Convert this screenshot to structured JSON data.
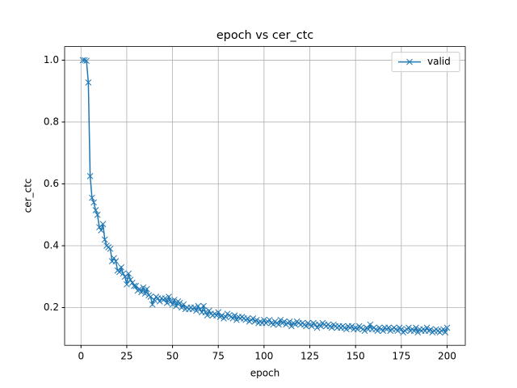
{
  "chart_data": {
    "type": "line",
    "title": "epoch vs cer_ctc",
    "x_label": "epoch",
    "y_label": "cer_ctc",
    "x": [
      1,
      2,
      3,
      4,
      5,
      6,
      7,
      8,
      9,
      10,
      11,
      12,
      13,
      14,
      15,
      16,
      17,
      18,
      19,
      20,
      21,
      22,
      23,
      24,
      25,
      26,
      27,
      28,
      29,
      30,
      31,
      32,
      33,
      34,
      35,
      36,
      37,
      38,
      39,
      40,
      41,
      42,
      43,
      44,
      45,
      46,
      47,
      48,
      49,
      50,
      51,
      52,
      53,
      54,
      55,
      56,
      57,
      58,
      59,
      60,
      61,
      62,
      63,
      64,
      65,
      66,
      67,
      68,
      69,
      70,
      71,
      72,
      73,
      74,
      75,
      76,
      77,
      78,
      79,
      80,
      81,
      82,
      83,
      84,
      85,
      86,
      87,
      88,
      89,
      90,
      91,
      92,
      93,
      94,
      95,
      96,
      97,
      98,
      99,
      100,
      101,
      102,
      103,
      104,
      105,
      106,
      107,
      108,
      109,
      110,
      111,
      112,
      113,
      114,
      115,
      116,
      117,
      118,
      119,
      120,
      121,
      122,
      123,
      124,
      125,
      126,
      127,
      128,
      129,
      130,
      131,
      132,
      133,
      134,
      135,
      136,
      137,
      138,
      139,
      140,
      141,
      142,
      143,
      144,
      145,
      146,
      147,
      148,
      149,
      150,
      151,
      152,
      153,
      154,
      155,
      156,
      157,
      158,
      159,
      160,
      161,
      162,
      163,
      164,
      165,
      166,
      167,
      168,
      169,
      170,
      171,
      172,
      173,
      174,
      175,
      176,
      177,
      178,
      179,
      180,
      181,
      182,
      183,
      184,
      185,
      186,
      187,
      188,
      189,
      190,
      191,
      192,
      193,
      194,
      195,
      196,
      197,
      198,
      199,
      200
    ],
    "series": [
      {
        "name": "valid",
        "color": "#1f77b4",
        "values": [
          1.0,
          1.0,
          0.998,
          0.928,
          0.625,
          0.555,
          0.54,
          0.515,
          0.5,
          0.46,
          0.45,
          0.47,
          0.42,
          0.4,
          0.395,
          0.39,
          0.35,
          0.36,
          0.35,
          0.32,
          0.315,
          0.33,
          0.31,
          0.3,
          0.275,
          0.31,
          0.29,
          0.28,
          0.27,
          0.27,
          0.255,
          0.26,
          0.25,
          0.265,
          0.245,
          0.26,
          0.24,
          0.235,
          0.21,
          0.225,
          0.235,
          0.23,
          0.22,
          0.23,
          0.225,
          0.23,
          0.215,
          0.235,
          0.22,
          0.21,
          0.225,
          0.205,
          0.22,
          0.215,
          0.2,
          0.21,
          0.195,
          0.2,
          0.195,
          0.2,
          0.195,
          0.2,
          0.19,
          0.205,
          0.195,
          0.185,
          0.205,
          0.185,
          0.175,
          0.19,
          0.18,
          0.175,
          0.18,
          0.175,
          0.185,
          0.17,
          0.175,
          0.165,
          0.17,
          0.18,
          0.175,
          0.17,
          0.165,
          0.175,
          0.16,
          0.17,
          0.165,
          0.17,
          0.165,
          0.16,
          0.165,
          0.155,
          0.16,
          0.165,
          0.155,
          0.16,
          0.15,
          0.155,
          0.15,
          0.16,
          0.15,
          0.155,
          0.16,
          0.15,
          0.145,
          0.155,
          0.15,
          0.145,
          0.16,
          0.15,
          0.155,
          0.145,
          0.15,
          0.155,
          0.14,
          0.15,
          0.145,
          0.155,
          0.15,
          0.145,
          0.15,
          0.145,
          0.14,
          0.15,
          0.145,
          0.14,
          0.15,
          0.145,
          0.135,
          0.145,
          0.14,
          0.15,
          0.145,
          0.14,
          0.145,
          0.14,
          0.135,
          0.145,
          0.14,
          0.135,
          0.14,
          0.135,
          0.14,
          0.135,
          0.13,
          0.14,
          0.135,
          0.14,
          0.13,
          0.135,
          0.13,
          0.14,
          0.135,
          0.13,
          0.125,
          0.135,
          0.13,
          0.145,
          0.13,
          0.135,
          0.13,
          0.125,
          0.135,
          0.13,
          0.125,
          0.135,
          0.13,
          0.135,
          0.125,
          0.13,
          0.135,
          0.13,
          0.125,
          0.135,
          0.13,
          0.12,
          0.125,
          0.13,
          0.135,
          0.125,
          0.13,
          0.125,
          0.135,
          0.12,
          0.13,
          0.125,
          0.13,
          0.125,
          0.135,
          0.125,
          0.13,
          0.12,
          0.125,
          0.13,
          0.125,
          0.12,
          0.125,
          0.13,
          0.12,
          0.135
        ]
      }
    ],
    "xlim": [
      -8.95,
      209.95
    ],
    "xticks": [
      0,
      25,
      50,
      75,
      100,
      125,
      150,
      175,
      200
    ],
    "ylim": [
      0.078,
      1.044
    ],
    "yticks": [
      0.2,
      0.4,
      0.6,
      0.8,
      {
        "value": 1,
        "label": "1.0"
      }
    ],
    "grid": true,
    "legend": "upper right"
  }
}
